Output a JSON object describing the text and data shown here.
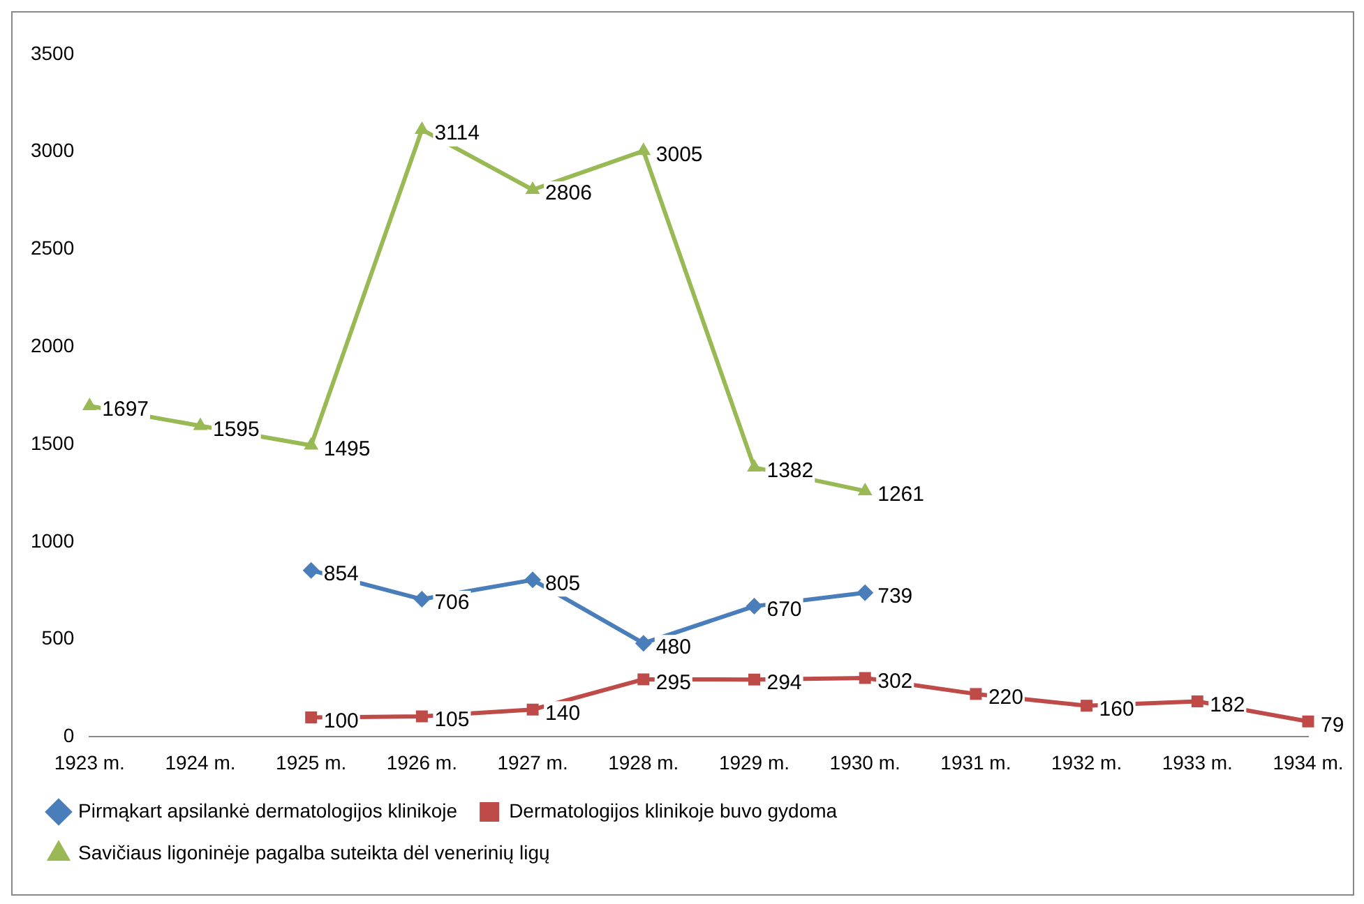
{
  "chart_data": {
    "type": "line",
    "categories": [
      "1923 m.",
      "1924 m.",
      "1925 m.",
      "1926 m.",
      "1927 m.",
      "1928 m.",
      "1929 m.",
      "1930 m.",
      "1931 m.",
      "1932 m.",
      "1933 m.",
      "1934 m."
    ],
    "series": [
      {
        "name": "Pirmąkart apsilankė dermatologijos klinikoje",
        "color": "#4a7ebb",
        "marker": "diamond",
        "values": [
          null,
          null,
          854,
          706,
          805,
          480,
          670,
          739,
          null,
          null,
          null,
          null
        ]
      },
      {
        "name": "Dermatologijos klinikoje buvo gydoma",
        "color": "#be4b48",
        "marker": "square",
        "values": [
          null,
          null,
          100,
          105,
          140,
          295,
          294,
          302,
          220,
          160,
          182,
          79
        ]
      },
      {
        "name": "Savičiaus ligoninėje pagalba suteikta dėl venerinių ligų",
        "color": "#98b954",
        "marker": "triangle",
        "values": [
          1697,
          1595,
          1495,
          3114,
          2806,
          3005,
          1382,
          1261,
          null,
          null,
          null,
          null
        ]
      }
    ],
    "ylim": [
      0,
      3500
    ],
    "yticks": [
      0,
      500,
      1000,
      1500,
      2000,
      2500,
      3000,
      3500
    ],
    "grid": false,
    "legend": "bottom",
    "data_labels": true,
    "line_style": "solid"
  }
}
